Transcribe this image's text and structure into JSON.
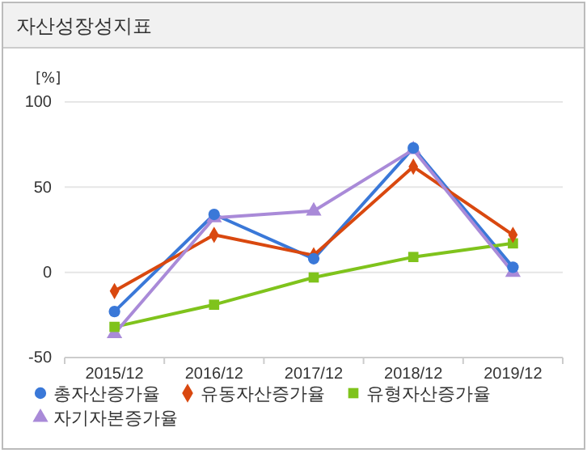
{
  "chart_data": {
    "type": "line",
    "title": "자산성장성지표",
    "ylabel": "[%]",
    "categories": [
      "2015/12",
      "2016/12",
      "2017/12",
      "2018/12",
      "2019/12"
    ],
    "ylim": [
      -50,
      100
    ],
    "yticks": [
      -50,
      0,
      50,
      100
    ],
    "grid": "y",
    "legend": "bottom",
    "series": [
      {
        "name": "총자산증가율",
        "color": "#3a78d8",
        "marker": "circle",
        "values": [
          -23,
          34,
          8,
          73,
          3
        ]
      },
      {
        "name": "유동자산증가율",
        "color": "#d9480f",
        "marker": "diamond",
        "values": [
          -11,
          22,
          10,
          62,
          22
        ]
      },
      {
        "name": "유형자산증가율",
        "color": "#7fc31c",
        "marker": "square",
        "values": [
          -32,
          -19,
          -3,
          9,
          17
        ]
      },
      {
        "name": "자기자본증가율",
        "color": "#a98ad8",
        "marker": "triangle",
        "values": [
          -36,
          32,
          36,
          72,
          0
        ]
      }
    ]
  }
}
